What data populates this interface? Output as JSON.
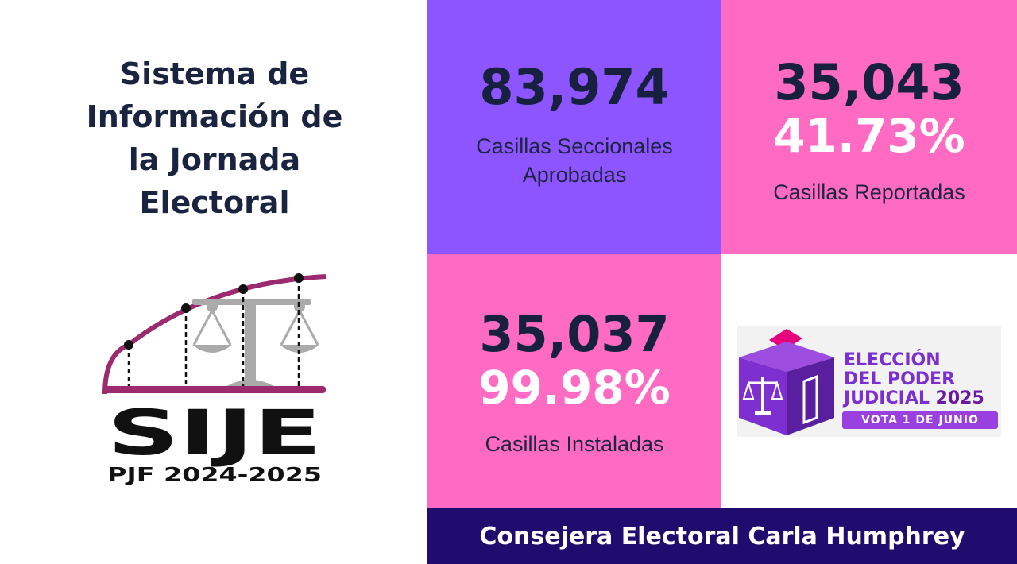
{
  "header": {
    "title_lines": [
      "Sistema de",
      "Información de",
      "la Jornada",
      "Electoral"
    ]
  },
  "logo": {
    "icon": "sije-scales-logo-icon",
    "wordmark": "SIJE",
    "subtitle": "PJF 2024-2025"
  },
  "stats": {
    "approved": {
      "value": "83,974",
      "label_lines": [
        "Casillas Seccionales",
        "Aprobadas"
      ]
    },
    "reported": {
      "value": "35,043",
      "percent": "41.73%",
      "label": "Casillas Reportadas"
    },
    "installed": {
      "value": "35,037",
      "percent": "99.98%",
      "label": "Casillas Instaladas"
    }
  },
  "badge": {
    "icon": "ballot-box-scales-icon",
    "line1": "ELECCIÓN",
    "line2": "DEL PODER",
    "line3": "JUDICIAL",
    "year": "2025",
    "vote_text": "VOTA 1 DE JUNIO"
  },
  "footer": {
    "text": "Consejera Electoral Carla Humphrey"
  },
  "colors": {
    "purple": "#8c55ff",
    "pink": "#ff6ac3",
    "navy": "#17213f",
    "footer_bg": "#200b6e",
    "logo_magenta": "#9b2a6e"
  }
}
